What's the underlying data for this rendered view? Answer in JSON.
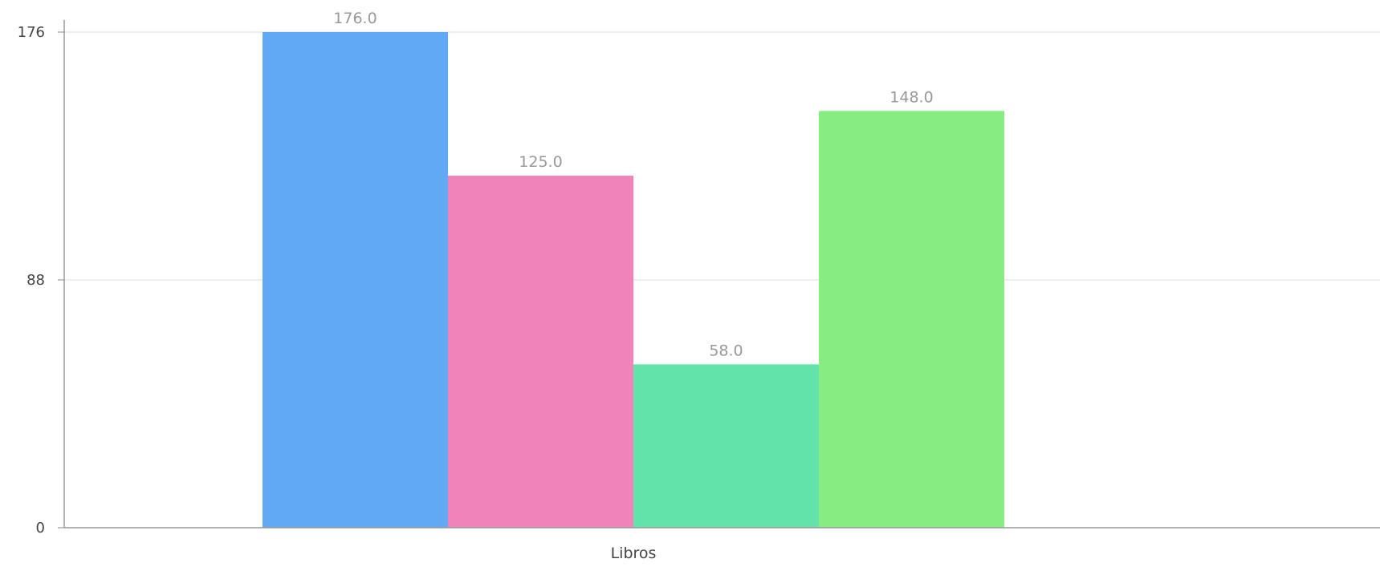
{
  "chart_data": {
    "type": "bar",
    "categories": [
      "Libros"
    ],
    "series": [
      {
        "values": [
          176.0
        ],
        "color": "#62a9f4"
      },
      {
        "values": [
          125.0
        ],
        "color": "#f183bb"
      },
      {
        "values": [
          58.0
        ],
        "color": "#62e3a9"
      },
      {
        "values": [
          148.0
        ],
        "color": "#87ed82"
      }
    ],
    "data_labels": [
      "176.0",
      "125.0",
      "58.0",
      "148.0"
    ],
    "y_ticks": [
      0,
      88,
      176
    ],
    "y_tick_labels": [
      "0",
      "88",
      "176"
    ],
    "ylim": [
      0,
      176
    ],
    "grid": true,
    "title": "",
    "xlabel": "",
    "ylabel": ""
  }
}
